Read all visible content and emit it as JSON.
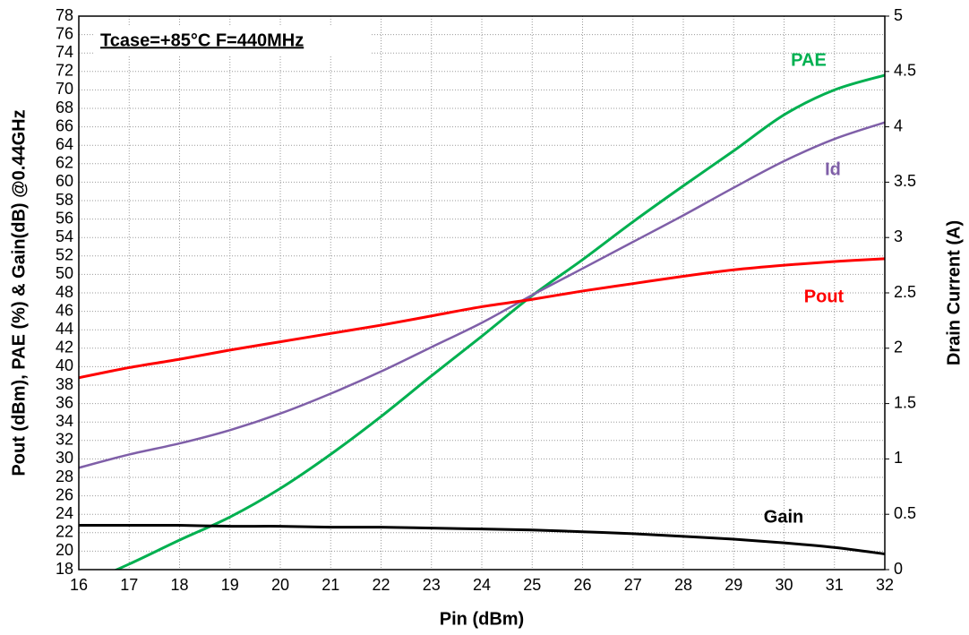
{
  "chart_data": {
    "type": "line",
    "annotation": "Tcase=+85°C F=440MHz",
    "x_label": "Pin (dBm)",
    "y_label": "Pout (dBm), PAE (%) & Gain(dB) @0.44GHz",
    "y2_label": "Drain Current (A)",
    "x": [
      16,
      17,
      18,
      19,
      20,
      21,
      22,
      23,
      24,
      25,
      26,
      27,
      28,
      29,
      30,
      31,
      32
    ],
    "series": [
      {
        "name": "PAE",
        "color": "#00b050",
        "values": [
          16.2,
          18.6,
          21.2,
          23.7,
          26.8,
          30.5,
          34.6,
          39.0,
          43.3,
          47.7,
          51.6,
          55.7,
          59.6,
          63.4,
          67.3,
          70.0,
          71.6
        ]
      },
      {
        "name": "Id",
        "color": "#7f5fa8",
        "axis": "y2",
        "values": [
          0.92,
          1.04,
          1.14,
          1.26,
          1.41,
          1.59,
          1.79,
          2.01,
          2.23,
          2.48,
          2.72,
          2.96,
          3.2,
          3.45,
          3.69,
          3.89,
          4.04
        ]
      },
      {
        "name": "Pout",
        "color": "#ff0000",
        "values": [
          38.8,
          39.9,
          40.8,
          41.8,
          42.7,
          43.6,
          44.5,
          45.5,
          46.5,
          47.3,
          48.2,
          49.0,
          49.8,
          50.5,
          51.0,
          51.4,
          51.7
        ]
      },
      {
        "name": "Gain",
        "color": "#000000",
        "values": [
          22.8,
          22.8,
          22.8,
          22.7,
          22.7,
          22.6,
          22.6,
          22.5,
          22.4,
          22.3,
          22.1,
          21.9,
          21.6,
          21.3,
          20.9,
          20.4,
          19.7
        ]
      }
    ],
    "xlim": [
      16,
      32
    ],
    "xticks": [
      16,
      17,
      18,
      19,
      20,
      21,
      22,
      23,
      24,
      25,
      26,
      27,
      28,
      29,
      30,
      31,
      32
    ],
    "ylim": [
      18,
      78
    ],
    "yticks": [
      18,
      20,
      22,
      24,
      26,
      28,
      30,
      32,
      34,
      36,
      38,
      40,
      42,
      44,
      46,
      48,
      50,
      52,
      54,
      56,
      58,
      60,
      62,
      64,
      66,
      68,
      70,
      72,
      74,
      76,
      78
    ],
    "y2lim": [
      0,
      5
    ],
    "y2ticks": [
      0,
      0.5,
      1,
      1.5,
      2,
      2.5,
      3,
      3.5,
      4,
      4.5,
      5
    ],
    "grid": true
  }
}
